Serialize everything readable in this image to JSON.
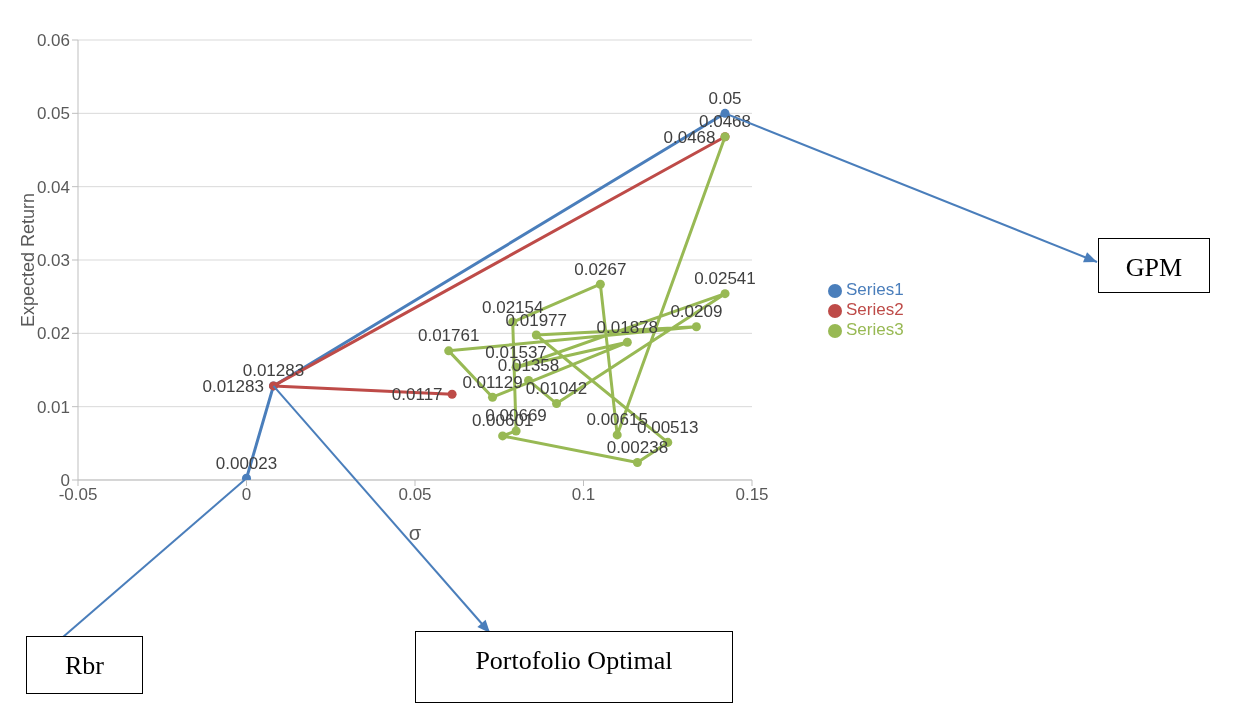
{
  "chart_data": {
    "type": "line",
    "xlabel": "σ",
    "ylabel": "Expected Return",
    "xlim": [
      -0.05,
      0.15
    ],
    "xticks": [
      -0.05,
      0,
      0.05,
      0.1,
      0.15
    ],
    "ylim": [
      0,
      0.06
    ],
    "yticks": [
      0,
      0.01,
      0.02,
      0.03,
      0.04,
      0.05,
      0.06
    ],
    "grid": "y",
    "legend": "right",
    "marker": "circle",
    "line_style": "solid",
    "data_labels": true,
    "series": [
      {
        "name": "Series1",
        "color": "#4a7ebb",
        "x": [
          0,
          0.008,
          0.142
        ],
        "values": [
          0.00023,
          0.01283,
          0.05
        ]
      },
      {
        "name": "Series2",
        "color": "#be4b48",
        "x": [
          0.142,
          0.008,
          0.061
        ],
        "values": [
          0.0468,
          0.01283,
          0.0117
        ]
      },
      {
        "name": "Series3",
        "color": "#98b954",
        "x": [
          0.142,
          0.11,
          0.105,
          0.079,
          0.08,
          0.076,
          0.116,
          0.125,
          0.086,
          0.1335,
          0.06,
          0.073,
          0.113,
          0.08,
          0.142,
          0.092,
          0.0837
        ],
        "values": [
          0.0468,
          0.00615,
          0.0267,
          0.02154,
          0.00669,
          0.00601,
          0.00238,
          0.00513,
          0.01977,
          0.0209,
          0.01761,
          0.01129,
          0.01878,
          0.01537,
          0.02541,
          0.01042,
          0.01358
        ]
      }
    ],
    "annotations": [
      {
        "text": "GPM",
        "x": 0.142,
        "y": 0.05
      },
      {
        "text": "Rbr",
        "x": 0,
        "y": 0.00023
      },
      {
        "text": "Portofolio Optimal",
        "x": 0.008,
        "y": 0.01283
      }
    ]
  }
}
